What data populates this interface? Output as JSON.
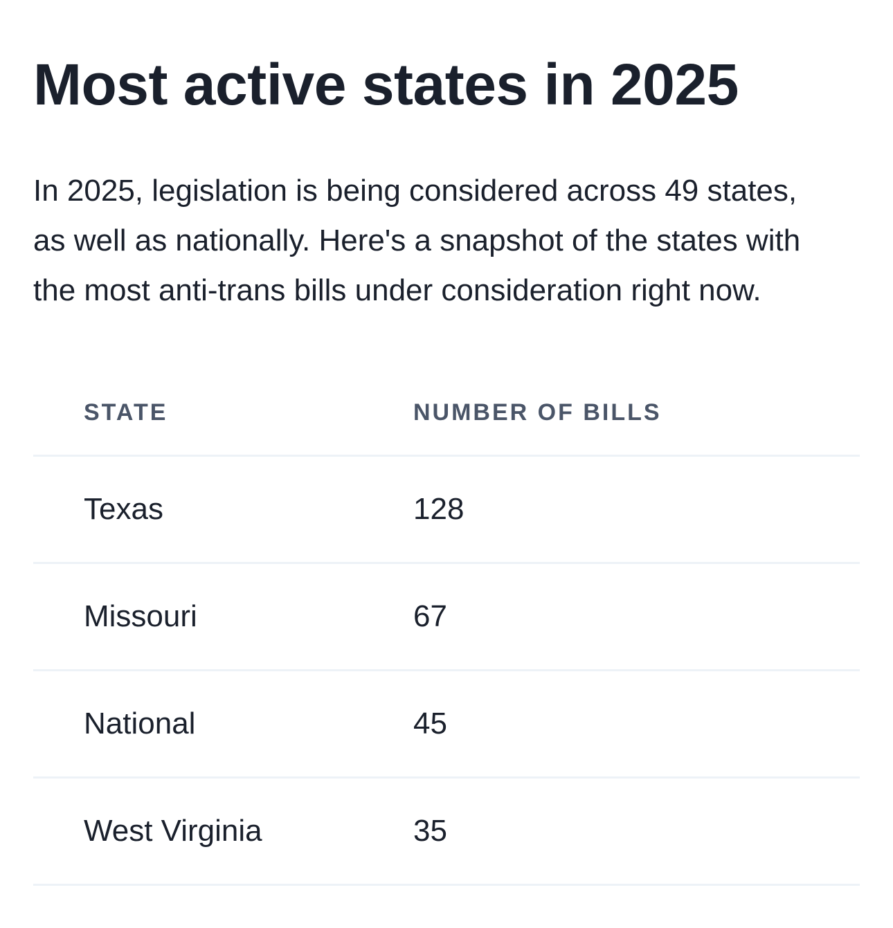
{
  "title": "Most active states in 2025",
  "intro": "In 2025, legislation is being considered across 49 states, as well as nationally. Here's a snapshot of the states with the most anti-trans bills under consideration right now.",
  "table": {
    "headers": {
      "state": "STATE",
      "bills": "NUMBER OF BILLS"
    },
    "rows": [
      {
        "state": "Texas",
        "bills": "128"
      },
      {
        "state": "Missouri",
        "bills": "67"
      },
      {
        "state": "National",
        "bills": "45"
      },
      {
        "state": "West Virginia",
        "bills": "35"
      }
    ]
  },
  "colors": {
    "text": "#1a202c",
    "header_text": "#4a5568",
    "divider": "#edf2f7",
    "background": "#ffffff"
  }
}
